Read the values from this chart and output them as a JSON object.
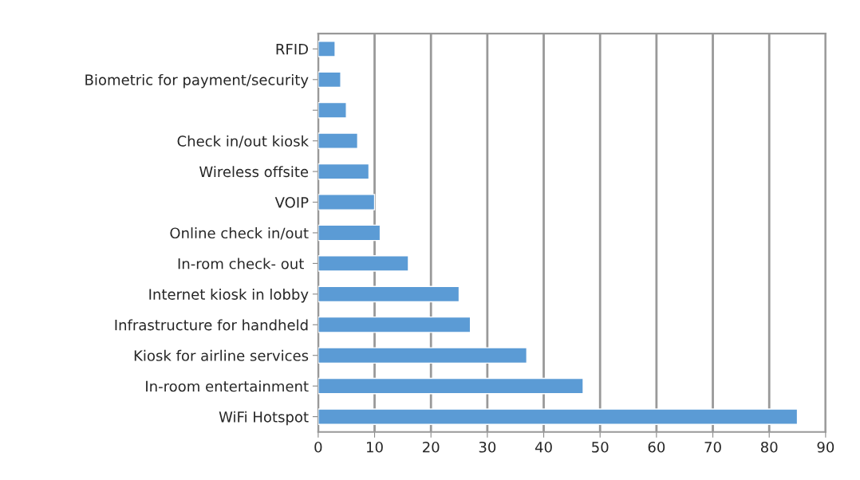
{
  "chart_data": {
    "type": "bar",
    "orientation": "horizontal",
    "categories": [
      "RFID",
      "Biometric for payment/security",
      null,
      "Check in/out kiosk",
      "Wireless offsite",
      "VOIP",
      "Online check in/out",
      "In-rom check- out ",
      "Internet kiosk in lobby",
      "Infrastructure for handheld",
      "Kiosk for airline services",
      "In-room entertainment",
      "WiFi Hotspot"
    ],
    "values": [
      3,
      4,
      5,
      7,
      9,
      10,
      11,
      16,
      25,
      27,
      37,
      47,
      85
    ],
    "color": "#5b9bd5",
    "xlim": [
      0,
      90
    ],
    "xticks": [
      0,
      10,
      20,
      30,
      40,
      50,
      60,
      70,
      80,
      90
    ],
    "grid": "x",
    "legend": false
  }
}
